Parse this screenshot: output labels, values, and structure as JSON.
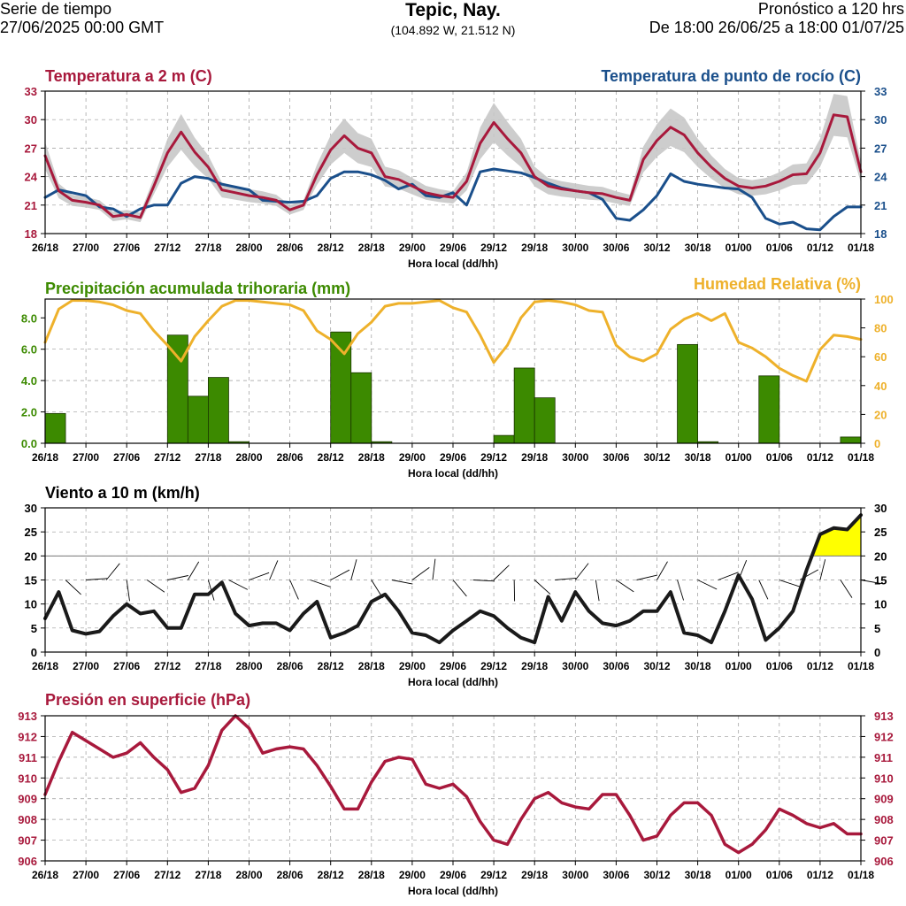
{
  "header": {
    "left_line1": "Serie de tiempo",
    "left_line2": "27/06/2025 00:00 GMT",
    "center_title": "Tepic, Nay.",
    "center_coords": "(104.892 W, 21.512 N)",
    "right_line1": "Pronóstico a 120 hrs",
    "right_line2": "De 18:00 26/06/25 a 18:00 01/07/25"
  },
  "colors": {
    "temperature": "#a8193c",
    "dewpoint": "#1a4f8b",
    "precipitation": "#3c8a00",
    "humidity": "#eeb12b",
    "wind": "#1a1a1a",
    "wind_fill": "#ffff00",
    "pressure": "#a8193c",
    "spread": "#c8c8c8"
  },
  "x_axis": {
    "label": "Hora local (dd/hh)",
    "ticks": [
      "26/18",
      "27/00",
      "27/06",
      "27/12",
      "27/18",
      "28/00",
      "28/06",
      "28/12",
      "28/18",
      "29/00",
      "29/06",
      "29/12",
      "29/18",
      "30/00",
      "30/06",
      "30/12",
      "30/18",
      "01/00",
      "01/06",
      "01/12",
      "01/18"
    ]
  },
  "chart_data": [
    {
      "type": "line",
      "title": "Temperatura a 2 m (C)",
      "title_right": "Temperatura de punto de rocío (C)",
      "xlabel": "Hora local (dd/hh)",
      "x_hours": [
        0,
        120
      ],
      "ylim": [
        18,
        33
      ],
      "yticks": [
        18,
        21,
        24,
        27,
        30,
        33
      ],
      "yticks_right": [
        18,
        21,
        24,
        27,
        30,
        33
      ],
      "series": [
        {
          "name": "Temperatura a 2 m (C)",
          "x": [
            0,
            2,
            4,
            6,
            8,
            10,
            12,
            14,
            16,
            18,
            20,
            22,
            24,
            26,
            28,
            30,
            32,
            34,
            36,
            38,
            40,
            42,
            44,
            46,
            48,
            50,
            52,
            54,
            56,
            58,
            60,
            62,
            64,
            66,
            68,
            70,
            72,
            74,
            76,
            78,
            80,
            82,
            84,
            86,
            88,
            90,
            92,
            94,
            96,
            98,
            100,
            102,
            104,
            106,
            108,
            110,
            112,
            114,
            116,
            118,
            120
          ],
          "y": [
            26.2,
            22.5,
            21.5,
            21.3,
            21.0,
            19.8,
            20.0,
            19.7,
            23.0,
            26.5,
            28.7,
            26.6,
            25.0,
            22.6,
            22.3,
            22.0,
            21.8,
            21.5,
            20.5,
            21.0,
            24.2,
            26.8,
            28.3,
            27.0,
            26.5,
            24.0,
            23.7,
            23.0,
            22.3,
            22.0,
            21.8,
            23.5,
            27.5,
            29.7,
            28.0,
            26.5,
            24.0,
            23.0,
            22.7,
            22.5,
            22.3,
            22.2,
            21.8,
            21.5,
            25.8,
            27.8,
            29.2,
            28.4,
            26.5,
            25.0,
            23.8,
            23.0,
            22.8,
            23.0,
            23.5,
            24.2,
            24.3,
            26.5,
            30.5,
            30.3,
            24.5
          ]
        },
        {
          "name": "Temperatura de punto de rocío (C)",
          "x": [
            0,
            2,
            4,
            6,
            8,
            10,
            12,
            14,
            16,
            18,
            20,
            22,
            24,
            26,
            28,
            30,
            32,
            34,
            36,
            38,
            40,
            42,
            44,
            46,
            48,
            50,
            52,
            54,
            56,
            58,
            60,
            62,
            64,
            66,
            68,
            70,
            72,
            74,
            76,
            78,
            80,
            82,
            84,
            86,
            88,
            90,
            92,
            94,
            96,
            98,
            100,
            102,
            104,
            106,
            108,
            110,
            112,
            114,
            116,
            118,
            120
          ],
          "y": [
            21.8,
            22.6,
            22.3,
            22.0,
            20.8,
            20.6,
            19.8,
            20.6,
            21.0,
            21.0,
            23.3,
            24.0,
            23.8,
            23.2,
            22.9,
            22.6,
            21.5,
            21.4,
            21.3,
            21.4,
            22.0,
            23.8,
            24.5,
            24.5,
            24.2,
            23.6,
            22.7,
            23.2,
            22.0,
            21.8,
            22.3,
            21.0,
            24.5,
            24.8,
            24.6,
            24.4,
            23.9,
            23.3,
            22.8,
            22.5,
            22.3,
            21.6,
            19.6,
            19.4,
            20.5,
            22.0,
            24.3,
            23.5,
            23.2,
            23.0,
            22.8,
            22.7,
            21.8,
            19.6,
            19.0,
            19.2,
            18.5,
            18.4,
            19.8,
            20.8,
            20.8
          ]
        }
      ]
    },
    {
      "type": "bar",
      "title": "Precipitación acumulada trihoraria (mm)",
      "title_right": "Humedad Relativa (%)",
      "xlabel": "Hora local (dd/hh)",
      "ylim": [
        0,
        9.2
      ],
      "yticks": [
        0.0,
        2.0,
        4.0,
        6.0,
        8.0
      ],
      "yticks_labels": [
        "0.0",
        "2.0",
        "4.0",
        "6.0",
        "8.0"
      ],
      "ylim_right": [
        0,
        100
      ],
      "yticks_right": [
        0,
        20,
        40,
        60,
        80,
        100
      ],
      "bars": {
        "name": "Precipitación acumulada trihoraria (mm)",
        "x_start_hours": [
          0,
          3,
          6,
          9,
          12,
          15,
          18,
          21,
          24,
          27,
          30,
          33,
          36,
          39,
          42,
          45,
          48,
          51,
          54,
          57,
          60,
          63,
          66,
          69,
          72,
          75,
          78,
          81,
          84,
          87,
          90,
          93,
          96,
          99,
          102,
          105,
          108,
          111,
          114,
          117
        ],
        "values": [
          1.9,
          0,
          0,
          0,
          0,
          0,
          6.9,
          3.0,
          4.2,
          0.1,
          0,
          0,
          0,
          0,
          7.1,
          4.5,
          0.1,
          0,
          0,
          0,
          0,
          0,
          0.5,
          4.8,
          2.9,
          0,
          0,
          0,
          0,
          0,
          0,
          6.3,
          0.1,
          0,
          0,
          4.3,
          0,
          0,
          0,
          0.4
        ]
      },
      "line": {
        "name": "Humedad Relativa (%)",
        "x": [
          0,
          2,
          4,
          6,
          8,
          10,
          12,
          14,
          16,
          18,
          20,
          22,
          24,
          26,
          28,
          30,
          32,
          34,
          36,
          38,
          40,
          42,
          44,
          46,
          48,
          50,
          52,
          54,
          56,
          58,
          60,
          62,
          64,
          66,
          68,
          70,
          72,
          74,
          76,
          78,
          80,
          82,
          84,
          86,
          88,
          90,
          92,
          94,
          96,
          98,
          100,
          102,
          104,
          106,
          108,
          110,
          112,
          114,
          116,
          118,
          120
        ],
        "y": [
          70,
          93,
          99,
          99,
          98,
          96,
          92,
          90,
          78,
          68,
          57,
          74,
          85,
          95,
          99,
          99,
          98,
          97,
          96,
          92,
          78,
          72,
          62,
          76,
          84,
          95,
          97,
          97,
          98,
          99,
          94,
          91,
          75,
          56,
          68,
          87,
          98,
          99,
          98,
          96,
          92,
          91,
          68,
          60,
          57,
          62,
          79,
          86,
          90,
          85,
          90,
          70,
          66,
          60,
          52,
          47,
          43,
          65,
          75,
          74,
          72
        ]
      }
    },
    {
      "type": "line",
      "title": "Viento a 10 m (km/h)",
      "xlabel": "Hora local (dd/hh)",
      "ylim": [
        0,
        30
      ],
      "yticks": [
        0,
        5,
        10,
        15,
        20,
        25,
        30
      ],
      "yticks_right": [
        0,
        5,
        10,
        15,
        20,
        25,
        30
      ],
      "threshold": 20,
      "series": [
        {
          "name": "Viento a 10 m (km/h)",
          "x": [
            0,
            2,
            4,
            6,
            8,
            10,
            12,
            14,
            16,
            18,
            20,
            22,
            24,
            26,
            28,
            30,
            32,
            34,
            36,
            38,
            40,
            42,
            44,
            46,
            48,
            50,
            52,
            54,
            56,
            58,
            60,
            62,
            64,
            66,
            68,
            70,
            72,
            74,
            76,
            78,
            80,
            82,
            84,
            86,
            88,
            90,
            92,
            94,
            96,
            98,
            100,
            102,
            104,
            106,
            108,
            110,
            112,
            114,
            116,
            118,
            120
          ],
          "y": [
            7,
            12.5,
            4.5,
            3.8,
            4.3,
            7.5,
            10,
            8,
            8.5,
            5,
            5,
            12,
            12,
            14.5,
            8,
            5.5,
            6,
            6,
            4.5,
            8,
            10.5,
            3,
            4,
            5.5,
            10.5,
            12,
            8.5,
            4,
            3.5,
            2,
            4.5,
            6.5,
            8.5,
            7.5,
            5,
            3,
            2,
            11.5,
            6.5,
            12.5,
            8.5,
            6,
            5.5,
            6.5,
            8.5,
            8.5,
            12.5,
            4,
            3.5,
            2,
            8.5,
            16,
            11,
            2.5,
            5,
            8.5,
            17,
            24.5,
            25.8,
            25.5,
            28.5
          ]
        }
      ],
      "barbs_x_hours": [
        0,
        3,
        6,
        9,
        12,
        15,
        18,
        21,
        24,
        27,
        30,
        33,
        36,
        39,
        42,
        45,
        48,
        51,
        54,
        57,
        60,
        63,
        66,
        69,
        72,
        75,
        78,
        81,
        84,
        87,
        90,
        93,
        96,
        99,
        102,
        105,
        108,
        111,
        114,
        117,
        120
      ]
    },
    {
      "type": "line",
      "title": "Presión en superficie (hPa)",
      "xlabel": "Hora local (dd/hh)",
      "ylim": [
        906,
        913
      ],
      "yticks": [
        906,
        907,
        908,
        909,
        910,
        911,
        912,
        913
      ],
      "yticks_right": [
        906,
        907,
        908,
        909,
        910,
        911,
        912,
        913
      ],
      "series": [
        {
          "name": "Presión en superficie (hPa)",
          "x": [
            0,
            2,
            4,
            6,
            8,
            10,
            12,
            14,
            16,
            18,
            20,
            22,
            24,
            26,
            28,
            30,
            32,
            34,
            36,
            38,
            40,
            42,
            44,
            46,
            48,
            50,
            52,
            54,
            56,
            58,
            60,
            62,
            64,
            66,
            68,
            70,
            72,
            74,
            76,
            78,
            80,
            82,
            84,
            86,
            88,
            90,
            92,
            94,
            96,
            98,
            100,
            102,
            104,
            106,
            108,
            110,
            112,
            114,
            116,
            118,
            120
          ],
          "y": [
            909.2,
            910.8,
            912.2,
            911.8,
            911.4,
            911.0,
            911.2,
            911.7,
            911.0,
            910.4,
            909.3,
            909.5,
            910.6,
            912.3,
            913.0,
            912.4,
            911.2,
            911.4,
            911.5,
            911.4,
            910.6,
            909.6,
            908.5,
            908.5,
            909.8,
            910.8,
            911.0,
            910.9,
            909.7,
            909.5,
            909.7,
            909.1,
            907.9,
            907.0,
            906.8,
            908.0,
            909.0,
            909.3,
            908.8,
            908.6,
            908.5,
            909.2,
            909.2,
            908.2,
            907.0,
            907.2,
            908.2,
            908.8,
            908.8,
            908.2,
            906.8,
            906.4,
            906.8,
            907.5,
            908.5,
            908.2,
            907.8,
            907.6,
            907.8,
            907.3,
            907.3
          ]
        }
      ]
    }
  ]
}
